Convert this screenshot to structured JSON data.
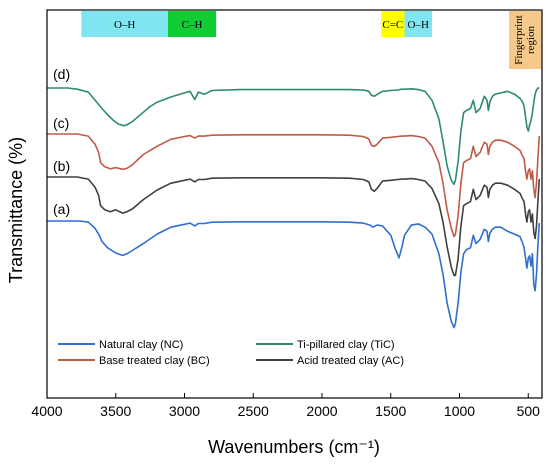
{
  "chart_data": {
    "type": "line",
    "xlabel": "Wavenumbers (cm⁻¹)",
    "ylabel": "Transmittance (%)",
    "xlim": [
      4000,
      400
    ],
    "x_reversed": true,
    "x_ticks": [
      4000,
      3500,
      3000,
      2500,
      2000,
      1500,
      1000,
      500
    ],
    "y_ticks_shown": false,
    "legend_position": "bottom-center",
    "bands": [
      {
        "label": "O–H",
        "from": 3750,
        "to": 3120,
        "color": "#7fe5f0"
      },
      {
        "label": "C–H",
        "from": 3120,
        "to": 2770,
        "color": "#11cc33"
      },
      {
        "label": "C=C",
        "from": 1570,
        "to": 1400,
        "color": "#ffff00"
      },
      {
        "label": "O–H",
        "from": 1400,
        "to": 1200,
        "color": "#7fe5f0"
      },
      {
        "label": "Fingerprint\nregion",
        "from": 640,
        "to": 405,
        "color": "#f5c98a"
      }
    ],
    "series": [
      {
        "name": "Natural clay (NC)",
        "curve_label": "(a)",
        "color": "#2f6fd0",
        "x": [
          4000,
          3850,
          3760,
          3700,
          3650,
          3620,
          3600,
          3560,
          3500,
          3450,
          3420,
          3380,
          3300,
          3200,
          3100,
          3000,
          2960,
          2925,
          2900,
          2855,
          2800,
          2600,
          2400,
          2200,
          2000,
          1800,
          1700,
          1650,
          1630,
          1600,
          1560,
          1500,
          1470,
          1440,
          1420,
          1400,
          1350,
          1300,
          1250,
          1200,
          1150,
          1120,
          1090,
          1060,
          1040,
          1030,
          1010,
          990,
          970,
          950,
          920,
          900,
          880,
          850,
          820,
          800,
          790,
          780,
          760,
          740,
          700,
          650,
          600,
          560,
          540,
          530,
          520,
          510,
          500,
          490,
          480,
          470,
          460,
          450,
          440,
          430,
          420
        ],
        "y": [
          0,
          0,
          0,
          -0.3,
          -1.8,
          -3.5,
          -5.0,
          -6.5,
          -7.8,
          -8.4,
          -8.0,
          -7.2,
          -5.5,
          -3.2,
          -1.5,
          -0.8,
          -0.5,
          -1.2,
          -0.6,
          -0.6,
          -0.3,
          -0.2,
          -0.2,
          -0.2,
          -0.2,
          -0.3,
          -0.5,
          -1.0,
          -1.5,
          -1.0,
          -1.2,
          -3.5,
          -6.5,
          -9.0,
          -6.5,
          -3.5,
          -1.0,
          -0.7,
          -1.5,
          -3.2,
          -8.0,
          -13.0,
          -20.0,
          -24.5,
          -26.0,
          -25.0,
          -20.0,
          -12.5,
          -8.0,
          -7.0,
          -6.5,
          -3.5,
          -5.5,
          -4.5,
          -2.0,
          -2.5,
          -5.0,
          -3.0,
          -2.0,
          -1.5,
          -1.5,
          -2.5,
          -3.2,
          -3.8,
          -5.5,
          -6.5,
          -9.0,
          -11.5,
          -9.0,
          -8.5,
          -11.0,
          -8.0,
          -15.5,
          -17.0,
          -13.0,
          -6.0,
          -0.5
        ]
      },
      {
        "name": "Acid treated clay (AC)",
        "curve_label": "(b)",
        "color": "#404040",
        "x": [
          4000,
          3850,
          3780,
          3700,
          3650,
          3625,
          3610,
          3580,
          3540,
          3500,
          3450,
          3420,
          3380,
          3300,
          3200,
          3100,
          3000,
          2960,
          2925,
          2900,
          2855,
          2800,
          2600,
          2400,
          2200,
          2000,
          1800,
          1700,
          1660,
          1640,
          1620,
          1600,
          1560,
          1500,
          1450,
          1420,
          1400,
          1350,
          1300,
          1250,
          1200,
          1150,
          1120,
          1090,
          1060,
          1040,
          1030,
          1010,
          990,
          970,
          950,
          920,
          900,
          880,
          850,
          820,
          800,
          790,
          780,
          760,
          740,
          700,
          650,
          600,
          560,
          540,
          530,
          520,
          510,
          500,
          490,
          480,
          470,
          460,
          450,
          440,
          430,
          420
        ],
        "y": [
          0,
          0,
          0,
          -0.5,
          -2.5,
          -4.5,
          -7.0,
          -8.0,
          -8.5,
          -8.0,
          -8.8,
          -8.5,
          -7.8,
          -5.5,
          -3.2,
          -1.5,
          -0.8,
          -0.5,
          -1.2,
          -0.6,
          -0.6,
          -0.3,
          -0.2,
          -0.2,
          -0.2,
          -0.2,
          -0.3,
          -0.6,
          -1.2,
          -3.0,
          -3.5,
          -2.8,
          -1.0,
          -0.8,
          -0.6,
          -0.5,
          -0.5,
          -0.4,
          -0.6,
          -1.0,
          -2.8,
          -6.5,
          -11.0,
          -17.0,
          -22.0,
          -24.0,
          -24.0,
          -20.0,
          -12.0,
          -7.0,
          -6.5,
          -6.0,
          -3.0,
          -5.5,
          -4.5,
          -2.0,
          -2.5,
          -5.0,
          -3.0,
          -2.0,
          -1.5,
          -1.5,
          -2.0,
          -3.0,
          -4.0,
          -5.5,
          -6.0,
          -9.0,
          -11.0,
          -8.5,
          -8.0,
          -11.0,
          -9.0,
          -13.5,
          -15.0,
          -12.0,
          -6.0,
          -0.5
        ]
      },
      {
        "name": "Base treated clay (BC)",
        "curve_label": "(c)",
        "color": "#bf5a45",
        "x": [
          4000,
          3850,
          3780,
          3700,
          3650,
          3625,
          3610,
          3580,
          3540,
          3500,
          3450,
          3420,
          3380,
          3300,
          3200,
          3100,
          3000,
          2960,
          2925,
          2900,
          2855,
          2800,
          2600,
          2400,
          2200,
          2000,
          1800,
          1700,
          1660,
          1640,
          1620,
          1600,
          1560,
          1500,
          1450,
          1420,
          1400,
          1350,
          1300,
          1250,
          1200,
          1150,
          1120,
          1090,
          1060,
          1040,
          1030,
          1010,
          990,
          970,
          950,
          920,
          900,
          880,
          850,
          820,
          800,
          790,
          780,
          760,
          740,
          700,
          650,
          600,
          560,
          540,
          530,
          520,
          510,
          500,
          490,
          480,
          470,
          460,
          450,
          440,
          430,
          420
        ],
        "y": [
          0,
          0,
          0,
          -0.5,
          -2.5,
          -4.5,
          -7.0,
          -8.0,
          -8.5,
          -8.2,
          -8.6,
          -8.4,
          -7.5,
          -5.0,
          -3.0,
          -1.3,
          -0.6,
          -0.4,
          -1.0,
          -0.5,
          -0.5,
          -0.3,
          -0.2,
          -0.2,
          -0.2,
          -0.2,
          -0.3,
          -0.6,
          -1.2,
          -2.8,
          -3.0,
          -2.5,
          -1.0,
          -0.8,
          -0.6,
          -0.5,
          -0.5,
          -0.4,
          -0.6,
          -1.0,
          -3.0,
          -7.0,
          -12.0,
          -18.5,
          -23.0,
          -25.0,
          -24.5,
          -20.0,
          -12.0,
          -7.0,
          -6.5,
          -6.0,
          -3.0,
          -5.5,
          -4.5,
          -2.0,
          -2.5,
          -5.0,
          -3.0,
          -2.0,
          -1.5,
          -1.5,
          -2.0,
          -3.0,
          -4.0,
          -5.5,
          -6.0,
          -9.0,
          -11.0,
          -9.0,
          -8.5,
          -11.0,
          -9.0,
          -13.5,
          -15.5,
          -12.0,
          -6.0,
          -0.5
        ]
      },
      {
        "name": "Ti-pillared clay (TiC)",
        "curve_label": "(d)",
        "color": "#2e8b6f",
        "x": [
          4000,
          3850,
          3780,
          3700,
          3650,
          3600,
          3560,
          3520,
          3480,
          3440,
          3420,
          3380,
          3320,
          3250,
          3200,
          3100,
          3000,
          2960,
          2925,
          2900,
          2855,
          2800,
          2600,
          2400,
          2200,
          2000,
          1800,
          1700,
          1660,
          1640,
          1620,
          1600,
          1560,
          1500,
          1450,
          1420,
          1400,
          1350,
          1300,
          1250,
          1200,
          1150,
          1120,
          1090,
          1060,
          1040,
          1030,
          1010,
          990,
          970,
          950,
          920,
          900,
          880,
          850,
          820,
          800,
          790,
          780,
          760,
          740,
          700,
          650,
          600,
          560,
          540,
          530,
          520,
          510,
          500,
          490,
          480,
          470,
          460,
          450,
          440,
          430,
          420
        ],
        "y": [
          0,
          0,
          -0.3,
          -1.0,
          -3.0,
          -5.0,
          -6.5,
          -7.8,
          -8.8,
          -9.2,
          -9.0,
          -8.2,
          -6.5,
          -4.5,
          -3.5,
          -2.2,
          -1.2,
          -0.8,
          -2.8,
          -1.0,
          -1.5,
          -0.6,
          -0.4,
          -0.4,
          -0.4,
          -0.4,
          -0.4,
          -0.5,
          -0.8,
          -1.8,
          -2.0,
          -1.6,
          -0.8,
          -0.6,
          -0.5,
          -0.3,
          -0.3,
          -0.2,
          -0.4,
          -0.8,
          -3.0,
          -7.5,
          -13.0,
          -19.0,
          -22.5,
          -23.5,
          -22.5,
          -18.0,
          -10.5,
          -6.0,
          -5.5,
          -5.0,
          -3.0,
          -6.0,
          -5.0,
          -2.0,
          -3.0,
          -5.5,
          -3.5,
          -2.0,
          -1.5,
          -1.2,
          -0.8,
          -1.5,
          -2.5,
          -3.5,
          -4.5,
          -7.0,
          -9.5,
          -10.5,
          -9.0,
          -8.0,
          -6.0,
          -3.5,
          -1.5,
          -0.5,
          0,
          0
        ]
      }
    ]
  }
}
